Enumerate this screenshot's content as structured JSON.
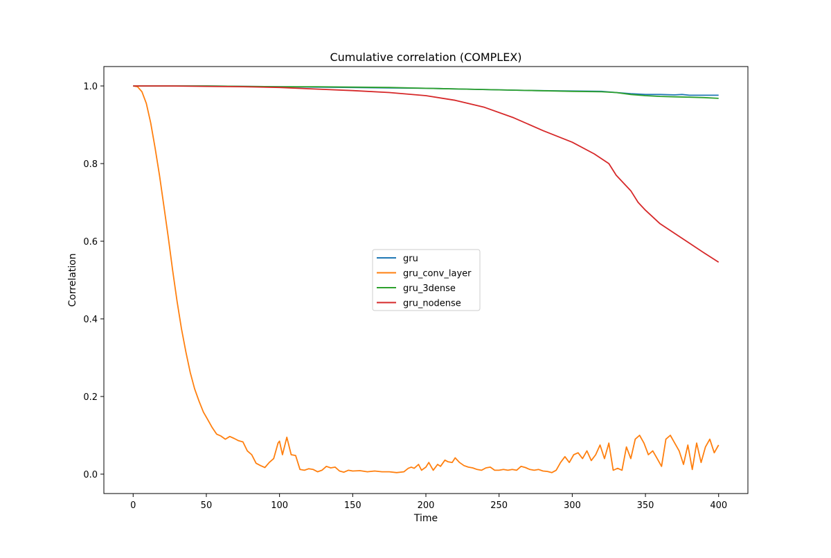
{
  "chart_data": {
    "type": "line",
    "title": "Cumulative correlation (COMPLEX)",
    "xlabel": "Time",
    "ylabel": "Correlation",
    "xlim": [
      -20,
      420
    ],
    "ylim": [
      -0.05,
      1.05
    ],
    "xticks": [
      0,
      50,
      100,
      150,
      200,
      250,
      300,
      350,
      400
    ],
    "xtick_labels": [
      "0",
      "50",
      "100",
      "150",
      "200",
      "250",
      "300",
      "350",
      "400"
    ],
    "yticks": [
      0.0,
      0.2,
      0.4,
      0.6,
      0.8,
      1.0
    ],
    "ytick_labels": [
      "0.0",
      "0.2",
      "0.4",
      "0.6",
      "0.8",
      "1.0"
    ],
    "grid": false,
    "legend_position": "center",
    "series": [
      {
        "name": "gru",
        "color": "#1f77b4",
        "x": [
          0,
          25,
          50,
          75,
          100,
          125,
          150,
          175,
          200,
          225,
          250,
          275,
          300,
          320,
          330,
          340,
          350,
          360,
          370,
          375,
          380,
          390,
          400
        ],
        "y": [
          1.0,
          1.0,
          1.0,
          0.999,
          0.998,
          0.997,
          0.996,
          0.995,
          0.994,
          0.992,
          0.99,
          0.988,
          0.987,
          0.986,
          0.983,
          0.98,
          0.978,
          0.978,
          0.977,
          0.978,
          0.976,
          0.976,
          0.976
        ]
      },
      {
        "name": "gru_conv_layer",
        "color": "#ff7f0e",
        "x": [
          0,
          3,
          6,
          9,
          12,
          15,
          18,
          21,
          24,
          27,
          30,
          33,
          36,
          39,
          42,
          45,
          48,
          51,
          54,
          57,
          60,
          63,
          66,
          69,
          72,
          75,
          78,
          81,
          84,
          87,
          90,
          93,
          96,
          99,
          100,
          102,
          105,
          108,
          111,
          114,
          117,
          120,
          123,
          126,
          129,
          132,
          135,
          138,
          141,
          144,
          147,
          150,
          155,
          160,
          165,
          170,
          175,
          180,
          185,
          188,
          190,
          192,
          195,
          197,
          200,
          202,
          205,
          208,
          210,
          213,
          215,
          218,
          220,
          223,
          226,
          229,
          232,
          235,
          238,
          241,
          244,
          247,
          250,
          253,
          256,
          259,
          262,
          265,
          268,
          271,
          274,
          277,
          280,
          283,
          286,
          289,
          292,
          295,
          298,
          301,
          304,
          307,
          310,
          313,
          316,
          319,
          322,
          325,
          328,
          331,
          334,
          337,
          340,
          343,
          346,
          349,
          352,
          355,
          358,
          361,
          364,
          367,
          370,
          373,
          376,
          379,
          382,
          385,
          388,
          391,
          394,
          397,
          400
        ],
        "y": [
          1.0,
          0.998,
          0.985,
          0.955,
          0.905,
          0.84,
          0.77,
          0.69,
          0.61,
          0.525,
          0.445,
          0.375,
          0.315,
          0.262,
          0.22,
          0.188,
          0.16,
          0.14,
          0.12,
          0.103,
          0.098,
          0.09,
          0.097,
          0.092,
          0.086,
          0.083,
          0.06,
          0.05,
          0.028,
          0.022,
          0.017,
          0.03,
          0.04,
          0.08,
          0.085,
          0.05,
          0.095,
          0.05,
          0.048,
          0.012,
          0.01,
          0.014,
          0.012,
          0.006,
          0.01,
          0.02,
          0.016,
          0.018,
          0.008,
          0.005,
          0.01,
          0.008,
          0.009,
          0.006,
          0.008,
          0.006,
          0.006,
          0.004,
          0.006,
          0.015,
          0.018,
          0.015,
          0.025,
          0.01,
          0.018,
          0.03,
          0.01,
          0.025,
          0.02,
          0.036,
          0.032,
          0.03,
          0.042,
          0.03,
          0.022,
          0.018,
          0.016,
          0.012,
          0.01,
          0.016,
          0.018,
          0.01,
          0.01,
          0.012,
          0.01,
          0.012,
          0.01,
          0.02,
          0.017,
          0.012,
          0.01,
          0.012,
          0.008,
          0.007,
          0.004,
          0.01,
          0.03,
          0.045,
          0.03,
          0.05,
          0.055,
          0.04,
          0.06,
          0.035,
          0.05,
          0.075,
          0.04,
          0.08,
          0.01,
          0.015,
          0.01,
          0.07,
          0.04,
          0.09,
          0.1,
          0.08,
          0.05,
          0.06,
          0.04,
          0.02,
          0.09,
          0.1,
          0.08,
          0.06,
          0.025,
          0.075,
          0.012,
          0.08,
          0.03,
          0.07,
          0.09,
          0.055,
          0.075
        ]
      },
      {
        "name": "gru_3dense",
        "color": "#2ca02c",
        "x": [
          0,
          25,
          50,
          75,
          100,
          125,
          150,
          175,
          200,
          225,
          250,
          275,
          300,
          320,
          330,
          340,
          350,
          360,
          370,
          380,
          390,
          400
        ],
        "y": [
          1.0,
          1.0,
          1.0,
          0.999,
          0.998,
          0.998,
          0.997,
          0.996,
          0.994,
          0.992,
          0.99,
          0.988,
          0.986,
          0.985,
          0.983,
          0.978,
          0.975,
          0.973,
          0.972,
          0.971,
          0.97,
          0.968
        ]
      },
      {
        "name": "gru_nodense",
        "color": "#d62728",
        "x": [
          0,
          25,
          50,
          75,
          100,
          125,
          150,
          175,
          200,
          220,
          240,
          260,
          280,
          300,
          315,
          325,
          330,
          340,
          345,
          350,
          360,
          370,
          380,
          390,
          400
        ],
        "y": [
          1.0,
          1.0,
          0.999,
          0.998,
          0.996,
          0.992,
          0.988,
          0.983,
          0.975,
          0.963,
          0.945,
          0.918,
          0.885,
          0.855,
          0.825,
          0.8,
          0.77,
          0.73,
          0.7,
          0.68,
          0.645,
          0.62,
          0.595,
          0.57,
          0.546
        ]
      }
    ]
  }
}
